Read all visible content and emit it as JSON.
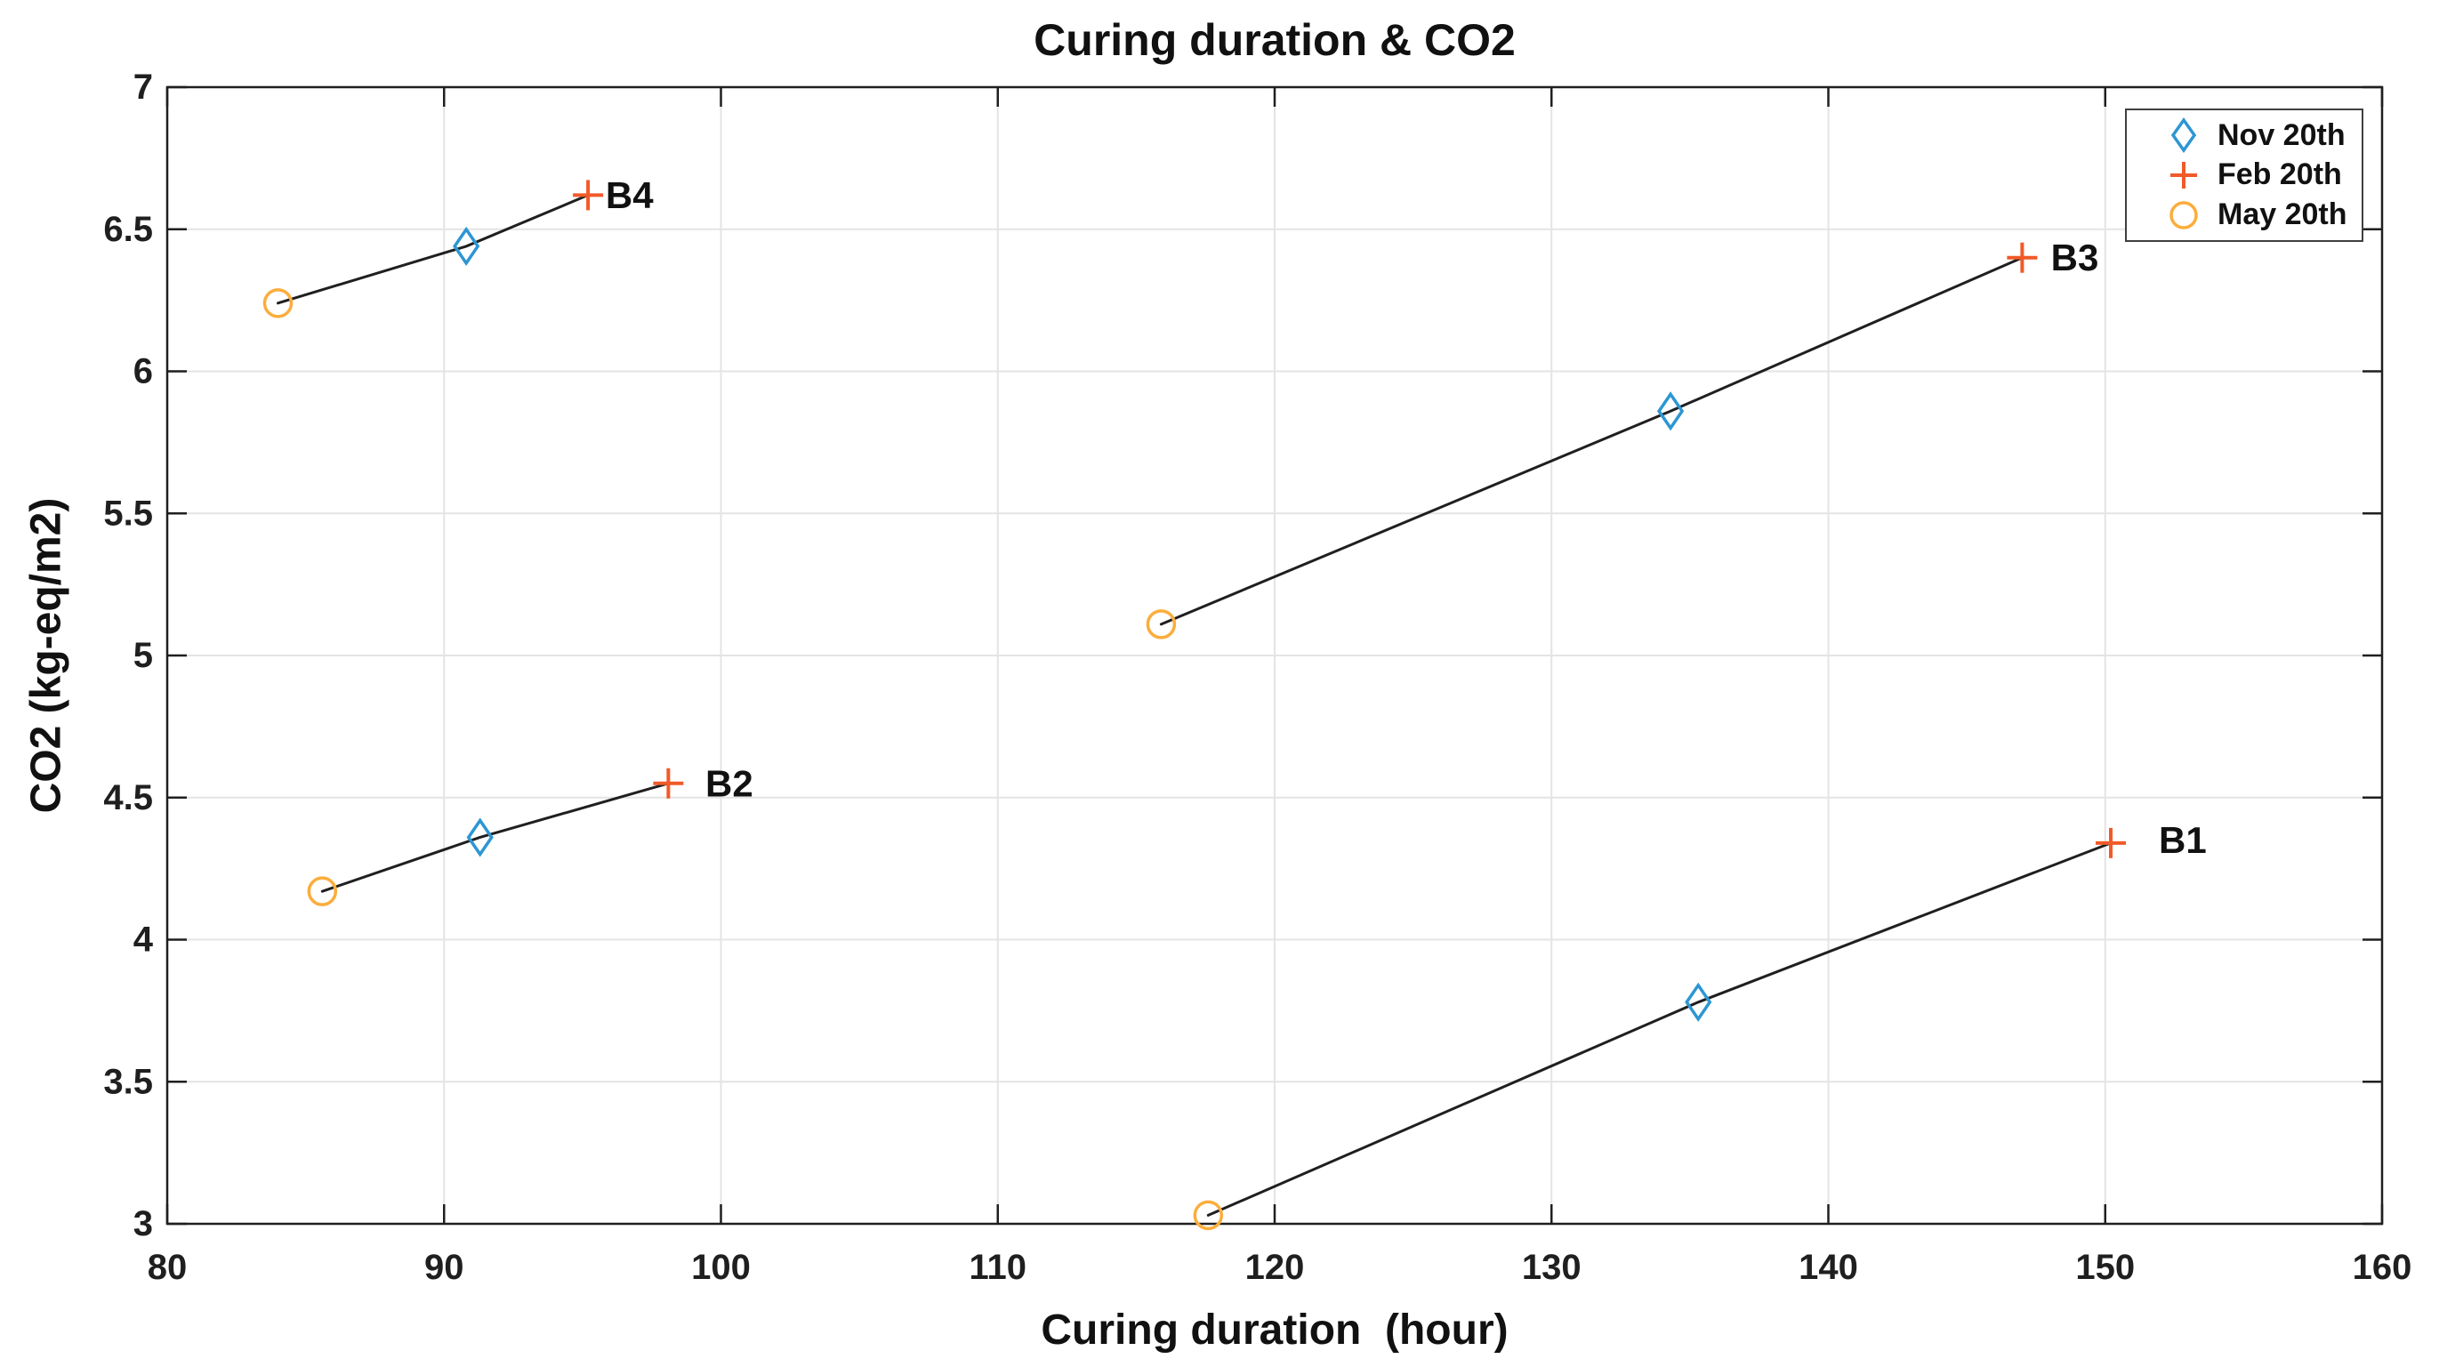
{
  "chart_data": {
    "type": "scatter",
    "title": "Curing duration & CO2",
    "xlabel": "Curing duration  (hour)",
    "ylabel": "CO2 (kg-eq/m2)",
    "xlim": [
      80,
      160
    ],
    "ylim": [
      3,
      7
    ],
    "xtick_values": [
      80,
      90,
      100,
      110,
      120,
      130,
      140,
      150,
      160
    ],
    "xtick_labels": [
      "80",
      "90",
      "100",
      "110",
      "120",
      "130",
      "140",
      "150",
      "160"
    ],
    "ytick_values": [
      3,
      3.5,
      4,
      4.5,
      5,
      5.5,
      6,
      6.5,
      7
    ],
    "ytick_labels": [
      "3",
      "3.5",
      "4",
      "4.5",
      "5",
      "5.5",
      "6",
      "6.5",
      "7"
    ],
    "grid": true,
    "legend_position": "top-right",
    "line_color": "#1f1f1f",
    "grid_color": "#e4e4e4",
    "series": [
      {
        "name": "Nov 20th",
        "marker": "diamond",
        "color": "#2d96d3"
      },
      {
        "name": "Feb 20th",
        "marker": "plus",
        "color": "#f15a29"
      },
      {
        "name": "May 20th",
        "marker": "circle",
        "color": "#fbad3c"
      }
    ],
    "groups": [
      {
        "label": "B4",
        "points": [
          {
            "series": "May 20th",
            "x": 84.0,
            "y": 6.24
          },
          {
            "series": "Nov 20th",
            "x": 90.8,
            "y": 6.44
          },
          {
            "series": "Feb 20th",
            "x": 95.2,
            "y": 6.62
          }
        ],
        "label_pos": [
          96.7,
          6.62
        ]
      },
      {
        "label": "B3",
        "points": [
          {
            "series": "May 20th",
            "x": 115.9,
            "y": 5.11
          },
          {
            "series": "Nov 20th",
            "x": 134.3,
            "y": 5.86
          },
          {
            "series": "Feb 20th",
            "x": 147.0,
            "y": 6.4
          }
        ],
        "label_pos": [
          148.9,
          6.4
        ]
      },
      {
        "label": "B2",
        "points": [
          {
            "series": "May 20th",
            "x": 85.6,
            "y": 4.17
          },
          {
            "series": "Nov 20th",
            "x": 91.3,
            "y": 4.36
          },
          {
            "series": "Feb 20th",
            "x": 98.1,
            "y": 4.55
          }
        ],
        "label_pos": [
          100.3,
          4.55
        ]
      },
      {
        "label": "B1",
        "points": [
          {
            "series": "May 20th",
            "x": 117.6,
            "y": 3.03
          },
          {
            "series": "Nov 20th",
            "x": 135.3,
            "y": 3.78
          },
          {
            "series": "Feb 20th",
            "x": 150.2,
            "y": 4.34
          }
        ],
        "label_pos": [
          152.8,
          4.35
        ]
      }
    ]
  }
}
